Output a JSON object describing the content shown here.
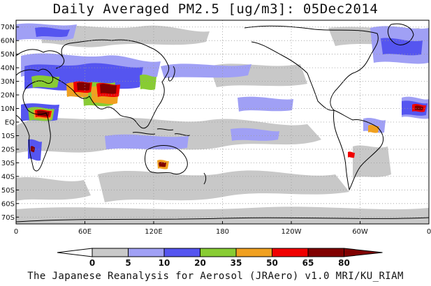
{
  "title": "Daily Averaged PM2.5 [ug/m3]: 05Dec2014",
  "footer": "The Japanese Reanalysis for Aerosol (JRAero) v1.0 MRI/KU_RIAM",
  "map": {
    "lon_range": [
      0,
      360
    ],
    "lat_range": [
      -75,
      75
    ],
    "x_ticks": [
      {
        "lon": 0,
        "label": "0"
      },
      {
        "lon": 60,
        "label": "60E"
      },
      {
        "lon": 120,
        "label": "120E"
      },
      {
        "lon": 180,
        "label": "180"
      },
      {
        "lon": 240,
        "label": "120W"
      },
      {
        "lon": 300,
        "label": "60W"
      },
      {
        "lon": 360,
        "label": "0"
      }
    ],
    "y_ticks": [
      {
        "lat": 70,
        "label": "70N"
      },
      {
        "lat": 60,
        "label": "60N"
      },
      {
        "lat": 50,
        "label": "50N"
      },
      {
        "lat": 40,
        "label": "40N"
      },
      {
        "lat": 30,
        "label": "30N"
      },
      {
        "lat": 20,
        "label": "20N"
      },
      {
        "lat": 10,
        "label": "10N"
      },
      {
        "lat": 0,
        "label": "EQ"
      },
      {
        "lat": -10,
        "label": "10S"
      },
      {
        "lat": -20,
        "label": "20S"
      },
      {
        "lat": -30,
        "label": "30S"
      },
      {
        "lat": -40,
        "label": "40S"
      },
      {
        "lat": -50,
        "label": "50S"
      },
      {
        "lat": -60,
        "label": "60S"
      },
      {
        "lat": -70,
        "label": "70S"
      }
    ],
    "grid": true
  },
  "colorbar": {
    "levels": [
      "0",
      "5",
      "10",
      "20",
      "35",
      "50",
      "65",
      "80"
    ],
    "colors": [
      "#ffffff",
      "#c8c8c8",
      "#a0a0f5",
      "#5555f0",
      "#88cc33",
      "#f0a020",
      "#f00000",
      "#800000"
    ]
  }
}
